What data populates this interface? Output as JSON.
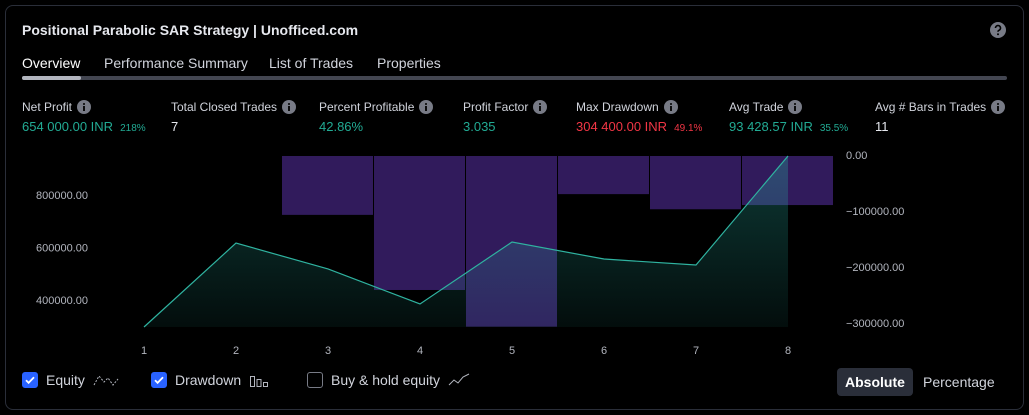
{
  "header": {
    "title": "Positional Parabolic SAR Strategy | Unofficed.com"
  },
  "tabs": {
    "items": [
      "Overview",
      "Performance Summary",
      "List of Trades",
      "Properties"
    ],
    "active": 0
  },
  "metrics": [
    {
      "label": "Net Profit",
      "value": "654 000.00 INR",
      "change": "218%",
      "tone": "positive"
    },
    {
      "label": "Total Closed Trades",
      "value": "7",
      "tone": "neutral"
    },
    {
      "label": "Percent Profitable",
      "value": "42.86%",
      "tone": "positive"
    },
    {
      "label": "Profit Factor",
      "value": "3.035",
      "tone": "positive"
    },
    {
      "label": "Max Drawdown",
      "value": "304 400.00 INR",
      "change": "49.1%",
      "tone": "negative"
    },
    {
      "label": "Avg Trade",
      "value": "93 428.57 INR",
      "change": "35.5%",
      "tone": "positive"
    },
    {
      "label": "Avg # Bars in Trades",
      "value": "11",
      "tone": "neutral"
    }
  ],
  "chart_data": {
    "type": "line",
    "x": [
      1,
      2,
      3,
      4,
      5,
      6,
      7,
      8
    ],
    "xlim": [
      0.5,
      8.5
    ],
    "xticks": [
      1,
      2,
      3,
      4,
      5,
      6,
      7,
      8
    ],
    "ylim": [
      300000,
      954000
    ],
    "yticks": [
      {
        "value": 400000,
        "label": "400000.00"
      },
      {
        "value": 600000,
        "label": "600000.00"
      },
      {
        "value": 800000,
        "label": "800000.00"
      }
    ],
    "y2lim": [
      -305000,
      0
    ],
    "y2ticks": [
      {
        "value": 0,
        "label": "0.00"
      },
      {
        "value": -100000,
        "label": "−100000.00"
      },
      {
        "value": -200000,
        "label": "−200000.00"
      },
      {
        "value": -300000,
        "label": "−300000.00"
      }
    ],
    "series": [
      {
        "name": "Equity",
        "color": "#2fb3a0",
        "type": "line",
        "values": [
          300000,
          621000,
          522000,
          388000,
          625000,
          560000,
          537000,
          954000
        ]
      },
      {
        "name": "Drawdown",
        "color": "#311b5c",
        "type": "bar",
        "axis": "y2",
        "values": [
          0,
          0,
          -105000,
          -239000,
          -304400,
          -68000,
          -95000,
          -87500
        ]
      }
    ]
  },
  "controls": {
    "series_checked": [
      true,
      true
    ],
    "buy_hold": {
      "label": "Buy & hold equity",
      "checked": false
    }
  },
  "buttons": {
    "items": [
      "Absolute",
      "Percentage"
    ],
    "active": 0
  }
}
